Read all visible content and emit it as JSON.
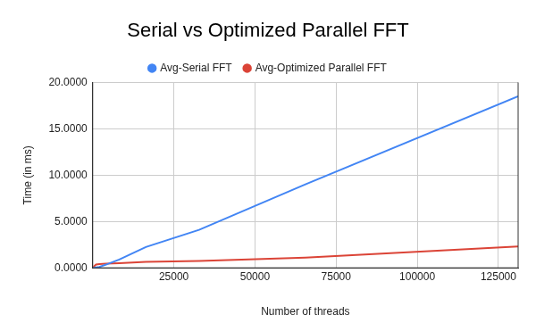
{
  "chart_data": {
    "type": "line",
    "title": "Serial vs Optimized Parallel FFT",
    "x_label": "Number of threads",
    "y_label": "Time (in ms)",
    "x": [
      256,
      512,
      1024,
      2048,
      4096,
      8192,
      16384,
      32768,
      65536,
      131072
    ],
    "series": [
      {
        "name": "Avg-Serial FFT",
        "color": "#4285f4",
        "values": [
          0.01,
          0.02,
          0.05,
          0.1,
          0.35,
          0.9,
          2.25,
          4.1,
          9.0,
          18.5
        ]
      },
      {
        "name": "Avg-Optimized Parallel FFT",
        "color": "#db4437",
        "values": [
          0.05,
          0.2,
          0.35,
          0.4,
          0.45,
          0.5,
          0.65,
          0.75,
          1.1,
          2.3
        ]
      }
    ],
    "xlim": [
      0,
      131072
    ],
    "xticks": [
      25000,
      50000,
      75000,
      100000,
      125000
    ],
    "ylim": [
      0,
      20
    ],
    "yticks": [
      {
        "value": 0,
        "label": "0.0000"
      },
      {
        "value": 5,
        "label": "5.0000"
      },
      {
        "value": 10,
        "label": "10.0000"
      },
      {
        "value": 15,
        "label": "15.0000"
      },
      {
        "value": 20,
        "label": "20.0000"
      }
    ],
    "grid": true,
    "legend": "top",
    "marker": "none",
    "line_style": "solid"
  }
}
